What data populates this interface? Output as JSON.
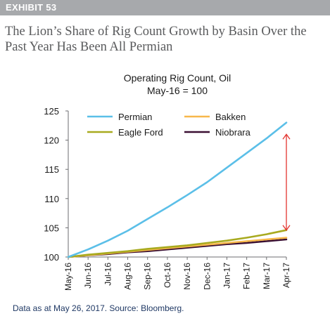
{
  "header": {
    "exhibit": "EXHIBIT 53",
    "headline_line1": "The Lion’s Share of Rig Count Growth by Basin Over the",
    "headline_line2": "Past Year Has Been All Permian"
  },
  "footer": {
    "source": "Data as at May 26, 2017. Source: Bloomberg."
  },
  "colors": {
    "Permian": "#5bbfe8",
    "Bakken": "#f7b84b",
    "Eagle Ford": "#a8aa1f",
    "Niobrara": "#3a0f32",
    "arrow": "#e3342f",
    "header_bar": "#a7a9ac"
  },
  "chart_data": {
    "type": "line",
    "title": "Operating Rig Count, Oil",
    "subtitle": "May-16 = 100",
    "xlabel": "",
    "ylabel": "",
    "categories": [
      "May-16",
      "Jun-16",
      "Jul-16",
      "Aug-16",
      "Sep-16",
      "Oct-16",
      "Nov-16",
      "Dec-16",
      "Jan-17",
      "Feb-17",
      "Mar-17",
      "Apr-17"
    ],
    "ylim": [
      100,
      125
    ],
    "yticks": [
      100,
      105,
      110,
      115,
      120,
      125
    ],
    "grid": false,
    "legend": "top",
    "legend_order": [
      "Permian",
      "Bakken",
      "Eagle Ford",
      "Niobrara"
    ],
    "series": [
      {
        "name": "Permian",
        "values": [
          100,
          101.3,
          102.8,
          104.5,
          106.5,
          108.5,
          110.6,
          112.8,
          115.3,
          117.8,
          120.3,
          123.0
        ]
      },
      {
        "name": "Bakken",
        "values": [
          100,
          100.3,
          100.6,
          100.9,
          101.2,
          101.5,
          101.8,
          102.1,
          102.4,
          102.7,
          103.0,
          103.3
        ]
      },
      {
        "name": "Eagle Ford",
        "values": [
          100,
          100.4,
          100.7,
          101.0,
          101.4,
          101.7,
          102.0,
          102.4,
          102.8,
          103.3,
          103.9,
          104.6
        ]
      },
      {
        "name": "Niobrara",
        "values": [
          100,
          100.3,
          100.5,
          100.8,
          101.0,
          101.3,
          101.6,
          101.9,
          102.2,
          102.4,
          102.7,
          103.0
        ]
      }
    ],
    "annotations": [
      {
        "type": "double-arrow",
        "x": "Apr-17",
        "from": 104.6,
        "to": 121.0
      }
    ]
  }
}
